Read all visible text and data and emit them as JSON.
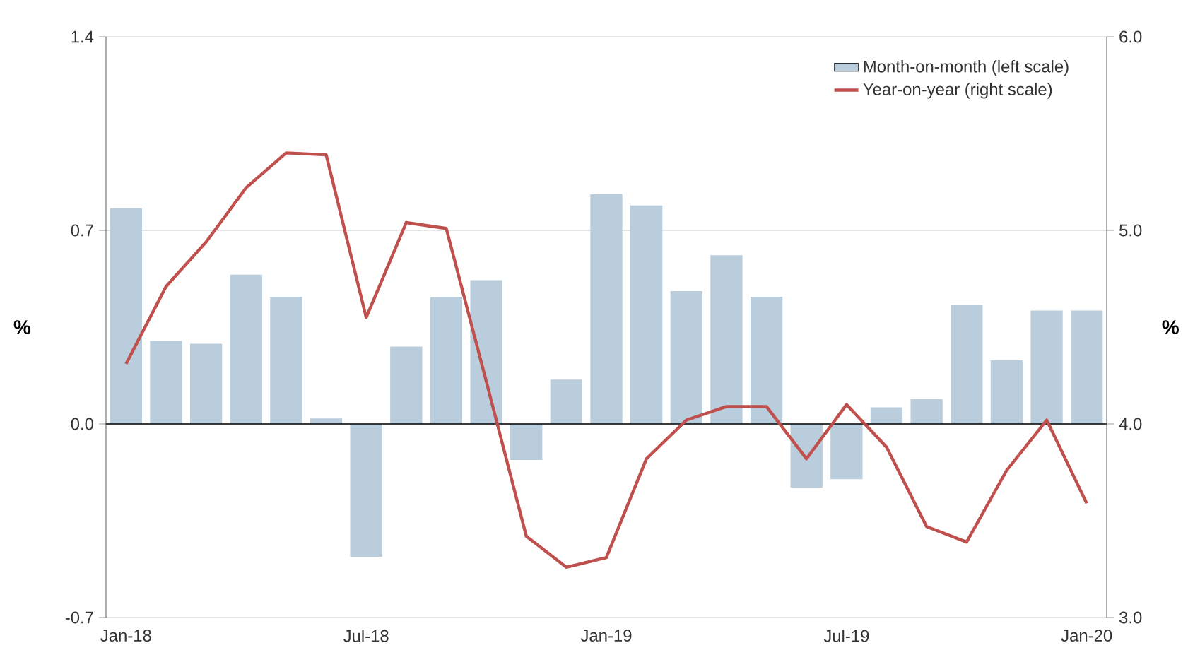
{
  "chart_data": {
    "type": "bar",
    "categories": [
      "Jan-18",
      null,
      null,
      null,
      null,
      null,
      "Jul-18",
      null,
      null,
      null,
      null,
      null,
      "Jan-19",
      null,
      null,
      null,
      null,
      null,
      "Jul-19",
      null,
      null,
      null,
      null,
      null,
      "Jan-20"
    ],
    "series": [
      {
        "name": "Month-on-month (left scale)",
        "color": "#b9cddc",
        "values": [
          0.78,
          0.3,
          0.29,
          0.54,
          0.46,
          0.02,
          -0.48,
          0.28,
          0.46,
          0.52,
          -0.13,
          0.16,
          0.83,
          0.79,
          0.48,
          0.61,
          0.46,
          -0.23,
          -0.2,
          0.06,
          0.09,
          0.43,
          0.23,
          0.41,
          0.41
        ]
      },
      {
        "name": "Year-on-year (right scale)",
        "type": "line",
        "axis": "y2",
        "color": "#c0504d",
        "values": [
          4.31,
          4.71,
          4.94,
          5.22,
          5.4,
          5.39,
          4.55,
          5.04,
          5.01,
          4.22,
          3.42,
          3.26,
          3.31,
          3.82,
          4.02,
          4.09,
          4.09,
          3.82,
          4.1,
          3.88,
          3.47,
          3.39,
          3.76,
          4.02,
          3.59
        ]
      }
    ],
    "ylabel": "%",
    "y2label": "%",
    "ylim": [
      -0.7,
      1.4
    ],
    "yticks": [
      -0.7,
      {
        "value": 0,
        "label": "0.0"
      },
      0.7,
      1.4
    ],
    "y2lim": [
      3.0,
      6.0
    ],
    "y2ticks": [
      {
        "value": 3,
        "label": "3.0"
      },
      {
        "value": 4,
        "label": "4.0"
      },
      {
        "value": 5,
        "label": "5.0"
      },
      {
        "value": 6,
        "label": "6.0"
      }
    ],
    "grid": "y",
    "legend": "top right",
    "marker": "none",
    "line_style": "solid"
  }
}
